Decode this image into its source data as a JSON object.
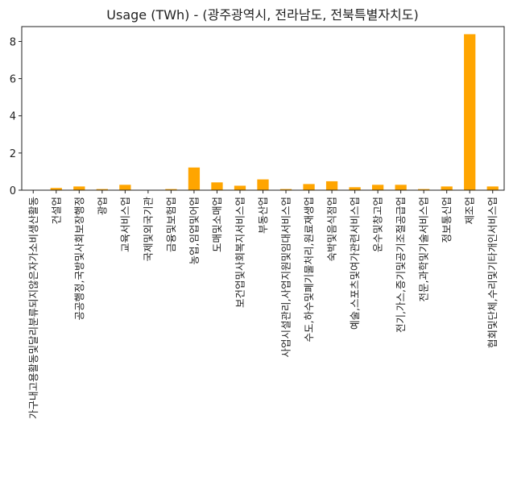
{
  "chart_data": {
    "type": "bar",
    "title": "Usage (TWh) - (광주광역시, 전라남도, 전북특별자치도)",
    "xlabel": "",
    "ylabel": "",
    "ylim": [
      0,
      8.8
    ],
    "yticks": [
      0,
      2,
      4,
      6,
      8
    ],
    "grid": false,
    "bar_color": "#FFA500",
    "categories": [
      "가구내고용활동및달리분류되지않은자가소비생산활동",
      "건설업",
      "공공행정,국방및사회보장행정",
      "광업",
      "교육서비스업",
      "국제및외국기관",
      "금융및보험업",
      "농업,임업및어업",
      "도매및소매업",
      "보건업및사회복지서비스업",
      "부동산업",
      "사업시설관리,사업지원및임대서비스업",
      "수도,하수및폐기물처리,원료재생업",
      "숙박및음식점업",
      "예술,스포츠및여가관련서비스업",
      "운수및창고업",
      "전기,가스,증기및공기조절공급업",
      "전문,과학및기술서비스업",
      "정보통신업",
      "제조업",
      "협회및단체,수리및기타개인서비스업"
    ],
    "values": [
      0.0,
      0.12,
      0.2,
      0.06,
      0.29,
      0.0,
      0.06,
      1.22,
      0.42,
      0.24,
      0.58,
      0.06,
      0.33,
      0.48,
      0.16,
      0.29,
      0.29,
      0.06,
      0.2,
      8.39,
      0.2
    ]
  }
}
